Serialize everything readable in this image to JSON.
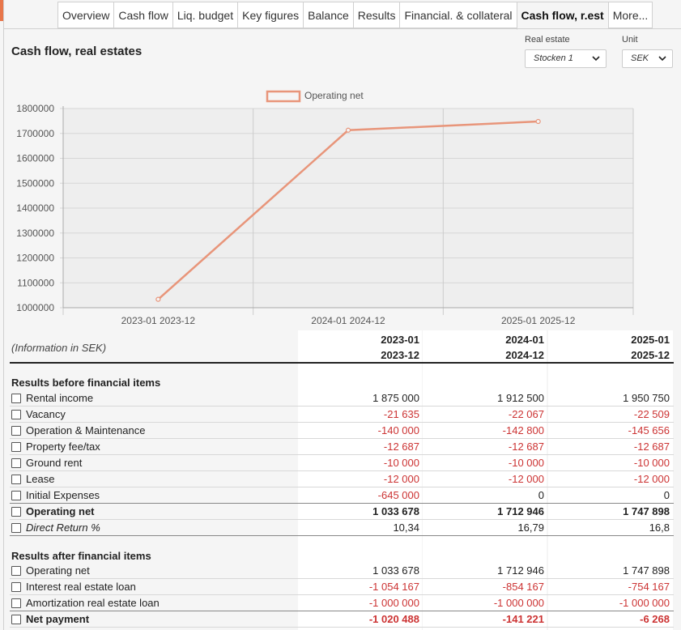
{
  "tabs": [
    {
      "label": "Overview"
    },
    {
      "label": "Cash flow"
    },
    {
      "label": "Liq. budget"
    },
    {
      "label": "Key figures"
    },
    {
      "label": "Balance"
    },
    {
      "label": "Results"
    },
    {
      "label": "Financial. & collateral"
    },
    {
      "label": "Cash flow, r.est",
      "active": true
    },
    {
      "label": "More..."
    }
  ],
  "page_title": "Cash flow, real estates",
  "filters": {
    "real_estate": {
      "label": "Real estate",
      "value": "Stocken 1"
    },
    "unit": {
      "label": "Unit",
      "value": "SEK"
    }
  },
  "chart_data": {
    "type": "line",
    "x": [
      "2023-01 2023-12",
      "2024-01 2024-12",
      "2025-01 2025-12"
    ],
    "series": [
      {
        "name": "Operating net",
        "values": [
          1033678,
          1712946,
          1747898
        ],
        "color": "#e8957a"
      }
    ],
    "ylim": [
      1000000,
      1800000
    ],
    "yticks": [
      "1800000",
      "1700000",
      "1600000",
      "1500000",
      "1400000",
      "1300000",
      "1200000",
      "1100000",
      "1000000"
    ],
    "grid": true,
    "legend": "top-center"
  },
  "table": {
    "info": "(Information in SEK)",
    "columns": [
      {
        "line1": "2023-01",
        "line2": "2023-12"
      },
      {
        "line1": "2024-01",
        "line2": "2024-12"
      },
      {
        "line1": "2025-01",
        "line2": "2025-12"
      }
    ],
    "section1_title": "Results before financial items",
    "section1": [
      {
        "label": "Rental income",
        "values": [
          "1 875 000",
          "1 912 500",
          "1 950 750"
        ]
      },
      {
        "label": "Vacancy",
        "values": [
          "-21 635",
          "-22 067",
          "-22 509"
        ]
      },
      {
        "label": "Operation & Maintenance",
        "values": [
          "-140 000",
          "-142 800",
          "-145 656"
        ]
      },
      {
        "label": "Property fee/tax",
        "values": [
          "-12 687",
          "-12 687",
          "-12 687"
        ]
      },
      {
        "label": "Ground rent",
        "values": [
          "-10 000",
          "-10 000",
          "-10 000"
        ]
      },
      {
        "label": "Lease",
        "values": [
          "-12 000",
          "-12 000",
          "-12 000"
        ]
      },
      {
        "label": "Initial Expenses",
        "values": [
          "-645 000",
          "0",
          "0"
        ]
      },
      {
        "label": "Operating net",
        "values": [
          "1 033 678",
          "1 712 946",
          "1 747 898"
        ]
      },
      {
        "label": "Direct Return %",
        "values": [
          "10,34",
          "16,79",
          "16,8"
        ]
      }
    ],
    "section2_title": "Results after financial items",
    "section2": [
      {
        "label": "Operating net",
        "values": [
          "1 033 678",
          "1 712 946",
          "1 747 898"
        ]
      },
      {
        "label": "Interest real estate loan",
        "values": [
          "-1 054 167",
          "-854 167",
          "-754 167"
        ]
      },
      {
        "label": "Amortization real estate loan",
        "values": [
          "-1 000 000",
          "-1 000 000",
          "-1 000 000"
        ]
      },
      {
        "label": "Net payment",
        "values": [
          "-1 020 488",
          "-141 221",
          "-6 268"
        ]
      }
    ]
  }
}
